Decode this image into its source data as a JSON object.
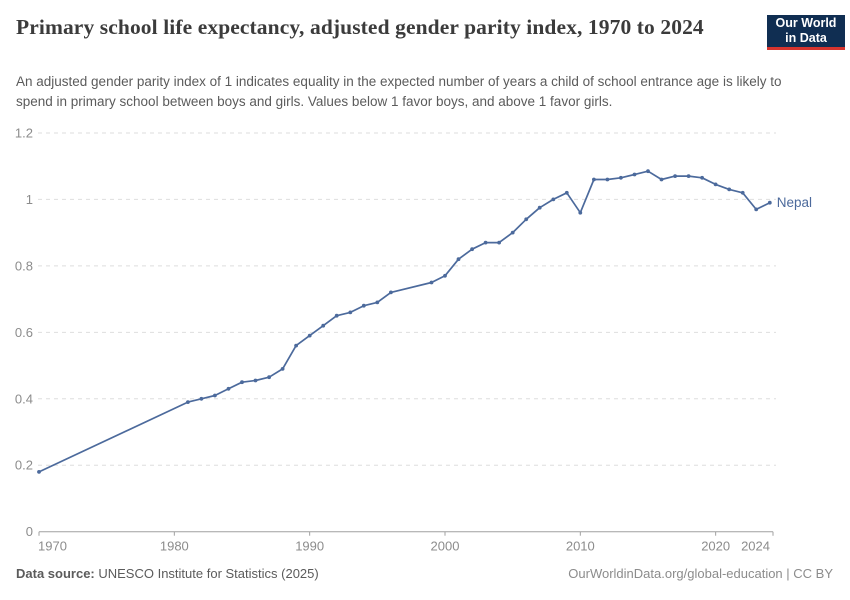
{
  "header": {
    "title": "Primary school life expectancy, adjusted gender parity index, 1970 to 2024",
    "subtitle": "An adjusted gender parity index of 1 indicates equality in the expected number of years a child of school entrance age is likely to spend in primary school between boys and girls. Values below 1 favor boys, and above 1 favor girls.",
    "logo": {
      "line1": "Our World",
      "line2": "in Data",
      "bg_color": "#102e52",
      "accent_color": "#d7342e"
    }
  },
  "footer": {
    "datasource_label": "Data source:",
    "datasource_value": " UNESCO Institute for Statistics (2025)",
    "attribution": "OurWorldinData.org/global-education | CC BY"
  },
  "chart_data": {
    "type": "line",
    "title": "Primary school life expectancy, adjusted gender parity index, 1970 to 2024",
    "xlabel": "",
    "ylabel": "",
    "xlim": [
      1970,
      2024
    ],
    "ylim": [
      0,
      1.2
    ],
    "grid": "horizontal-dashed",
    "legend_position": "end-of-line",
    "x_ticks": [
      {
        "year": 1970,
        "label": "1970"
      },
      {
        "year": 1980,
        "label": "1980"
      },
      {
        "year": 1990,
        "label": "1990"
      },
      {
        "year": 2000,
        "label": "2000"
      },
      {
        "year": 2010,
        "label": "2010"
      },
      {
        "year": 2020,
        "label": "2020"
      },
      {
        "year": 2024,
        "label": "2024"
      }
    ],
    "y_ticks": [
      {
        "v": 0,
        "label": "0"
      },
      {
        "v": 0.2,
        "label": "0.2"
      },
      {
        "v": 0.4,
        "label": "0.4"
      },
      {
        "v": 0.6,
        "label": "0.6"
      },
      {
        "v": 0.8,
        "label": "0.8"
      },
      {
        "v": 1,
        "label": "1"
      },
      {
        "v": 1.2,
        "label": "1.2"
      }
    ],
    "colors": {
      "line": "#4c6a9c",
      "grid": "#dedede",
      "axis": "#a0a0a0",
      "tick_text": "#8c8c8c"
    },
    "series": [
      {
        "name": "Nepal",
        "color": "#4c6a9c",
        "points": [
          [
            1970,
            0.18
          ],
          [
            1981,
            0.39
          ],
          [
            1982,
            0.4
          ],
          [
            1983,
            0.41
          ],
          [
            1984,
            0.43
          ],
          [
            1985,
            0.45
          ],
          [
            1986,
            0.455
          ],
          [
            1987,
            0.465
          ],
          [
            1988,
            0.49
          ],
          [
            1989,
            0.56
          ],
          [
            1990,
            0.59
          ],
          [
            1991,
            0.62
          ],
          [
            1992,
            0.65
          ],
          [
            1993,
            0.66
          ],
          [
            1994,
            0.68
          ],
          [
            1995,
            0.69
          ],
          [
            1996,
            0.72
          ],
          [
            1999,
            0.75
          ],
          [
            2000,
            0.77
          ],
          [
            2001,
            0.82
          ],
          [
            2002,
            0.85
          ],
          [
            2003,
            0.87
          ],
          [
            2004,
            0.87
          ],
          [
            2005,
            0.9
          ],
          [
            2006,
            0.94
          ],
          [
            2007,
            0.975
          ],
          [
            2008,
            1.0
          ],
          [
            2009,
            1.02
          ],
          [
            2010,
            0.96
          ],
          [
            2011,
            1.06
          ],
          [
            2012,
            1.06
          ],
          [
            2013,
            1.065
          ],
          [
            2014,
            1.075
          ],
          [
            2015,
            1.085
          ],
          [
            2016,
            1.06
          ],
          [
            2017,
            1.07
          ],
          [
            2018,
            1.07
          ],
          [
            2019,
            1.065
          ],
          [
            2020,
            1.045
          ],
          [
            2021,
            1.03
          ],
          [
            2022,
            1.02
          ],
          [
            2023,
            0.97
          ],
          [
            2024,
            0.99
          ]
        ]
      }
    ]
  }
}
